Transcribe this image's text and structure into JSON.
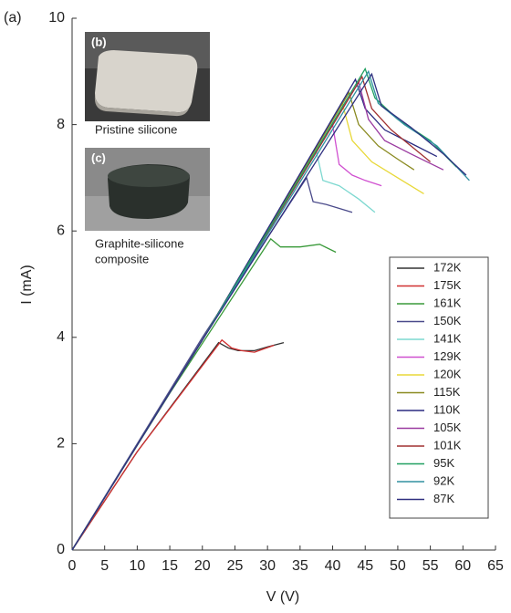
{
  "chart_data": {
    "type": "line",
    "panel_label": "(a)",
    "xlabel": "V (V)",
    "ylabel": "I (mA)",
    "xlim": [
      0,
      65
    ],
    "ylim": [
      0,
      10
    ],
    "xticks": [
      0,
      5,
      10,
      15,
      20,
      25,
      30,
      35,
      40,
      45,
      50,
      55,
      60,
      65
    ],
    "yticks": [
      0,
      2,
      4,
      6,
      8,
      10
    ],
    "insets": [
      {
        "label": "(b)",
        "caption": [
          "Pristine silicone"
        ]
      },
      {
        "label": "(c)",
        "caption": [
          "Graphite-silicone",
          "composite"
        ]
      }
    ],
    "series": [
      {
        "name": "172K",
        "color": "#333333",
        "x": [
          0,
          10,
          22.5,
          24,
          25.5,
          28,
          30,
          32.5
        ],
        "values": [
          0,
          1.85,
          3.9,
          3.8,
          3.75,
          3.75,
          3.82,
          3.9
        ]
      },
      {
        "name": "175K",
        "color": "#d03030",
        "x": [
          0,
          10,
          23,
          24.5,
          26,
          28,
          31
        ],
        "values": [
          0,
          1.85,
          3.95,
          3.8,
          3.75,
          3.72,
          3.85
        ]
      },
      {
        "name": "161K",
        "color": "#3a9a3a",
        "x": [
          0,
          15,
          30.5,
          32,
          35,
          38,
          40.5
        ],
        "values": [
          0,
          2.95,
          5.85,
          5.7,
          5.7,
          5.75,
          5.6
        ]
      },
      {
        "name": "150K",
        "color": "#4a4a8a",
        "x": [
          0,
          20,
          36,
          37,
          39,
          43
        ],
        "values": [
          0,
          4.0,
          7.0,
          6.55,
          6.5,
          6.35
        ]
      },
      {
        "name": "141K",
        "color": "#7dd8d0",
        "x": [
          0,
          20,
          37.5,
          38.5,
          41,
          44,
          46.5
        ],
        "values": [
          0,
          3.95,
          7.5,
          6.95,
          6.85,
          6.6,
          6.35
        ]
      },
      {
        "name": "129K",
        "color": "#d050d0",
        "x": [
          0,
          20,
          40,
          41,
          43,
          45,
          47.5
        ],
        "values": [
          0,
          3.95,
          8.0,
          7.25,
          7.05,
          6.95,
          6.85
        ]
      },
      {
        "name": "120K",
        "color": "#e8d838",
        "x": [
          0,
          20,
          41.5,
          43,
          46,
          50,
          54
        ],
        "values": [
          0,
          3.95,
          8.4,
          7.7,
          7.3,
          7.0,
          6.7
        ]
      },
      {
        "name": "115K",
        "color": "#8a8a20",
        "x": [
          0,
          20,
          42.5,
          44,
          47,
          50,
          52.5
        ],
        "values": [
          0,
          3.95,
          8.6,
          8.0,
          7.6,
          7.35,
          7.15
        ]
      },
      {
        "name": "110K",
        "color": "#2a2a80",
        "x": [
          0,
          20,
          43.5,
          45,
          48,
          52,
          56
        ],
        "values": [
          0,
          3.95,
          8.85,
          8.3,
          7.9,
          7.65,
          7.4
        ]
      },
      {
        "name": "105K",
        "color": "#9a3aa0",
        "x": [
          0,
          20,
          44,
          45.5,
          48,
          52,
          57
        ],
        "values": [
          0,
          3.95,
          8.8,
          8.1,
          7.7,
          7.45,
          7.15
        ]
      },
      {
        "name": "101K",
        "color": "#a03030",
        "x": [
          0,
          20,
          44.5,
          46,
          49,
          52,
          55
        ],
        "values": [
          0,
          3.95,
          8.9,
          8.3,
          7.9,
          7.6,
          7.3
        ]
      },
      {
        "name": "95K",
        "color": "#20a060",
        "x": [
          0,
          20,
          45,
          46.5,
          50,
          55,
          59
        ],
        "values": [
          0,
          3.95,
          9.05,
          8.5,
          8.1,
          7.7,
          7.2
        ]
      },
      {
        "name": "92K",
        "color": "#3090a0",
        "x": [
          0,
          20,
          45.5,
          47,
          51,
          56,
          61
        ],
        "values": [
          0,
          3.95,
          9.0,
          8.4,
          8.0,
          7.6,
          6.95
        ]
      },
      {
        "name": "87K",
        "color": "#303080",
        "x": [
          0,
          20,
          46,
          47.5,
          52,
          57,
          60.5
        ],
        "values": [
          0,
          3.95,
          8.95,
          8.35,
          7.95,
          7.45,
          7.05
        ]
      }
    ]
  }
}
